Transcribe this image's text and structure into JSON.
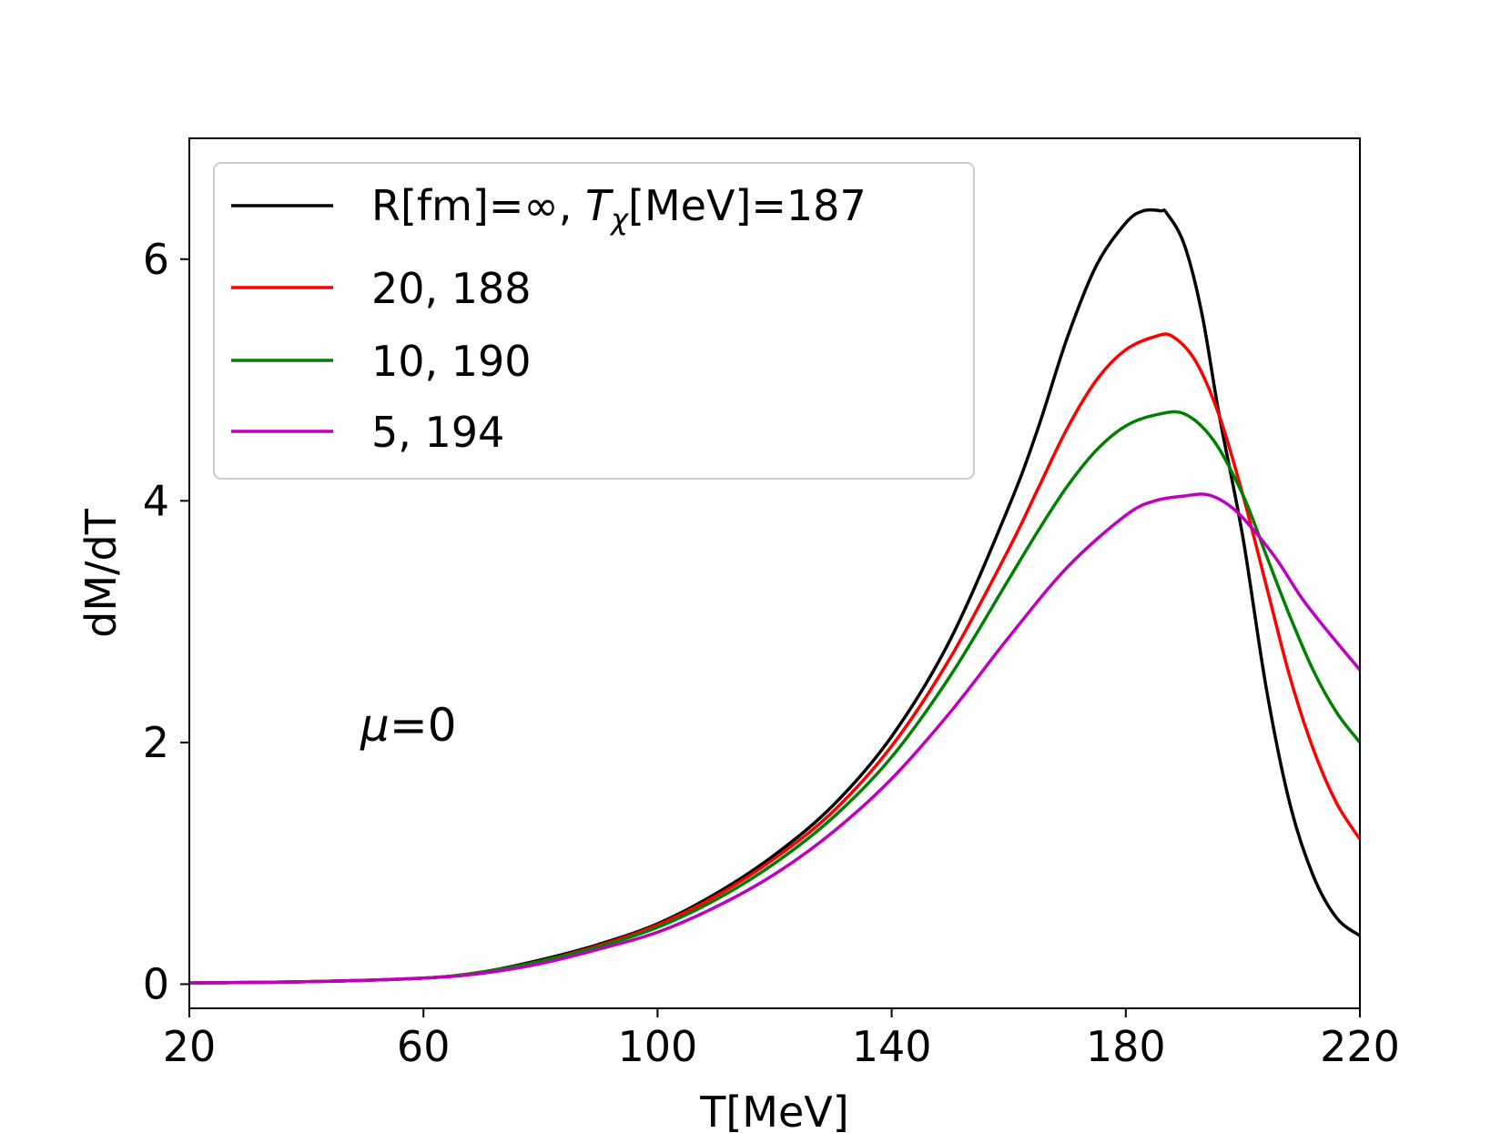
{
  "chart_data": {
    "type": "line",
    "title": "",
    "xlabel": "T[MeV]",
    "ylabel": "dM/dT",
    "xlim": [
      20,
      220
    ],
    "ylim": [
      -0.2,
      7.0
    ],
    "xticks": [
      20,
      60,
      100,
      140,
      180,
      220
    ],
    "yticks": [
      0,
      2,
      4,
      6
    ],
    "xtick_labels": [
      "20",
      "60",
      "100",
      "140",
      "180",
      "220"
    ],
    "ytick_labels": [
      "0",
      "2",
      "4",
      "6"
    ],
    "grid": false,
    "legend_position": "top-left",
    "annotation": {
      "symbol": "μ",
      "text": "=0",
      "x": 50,
      "y": 2.0
    },
    "series": [
      {
        "name": "R[fm]=∞, Tχ[MeV]=187",
        "legend_prefix": "R[fm]=∞, ",
        "legend_symbol": "T",
        "legend_subscript": "χ",
        "legend_suffix": "[MeV]=187",
        "color": "#000000",
        "x": [
          20,
          40,
          60,
          70,
          80,
          90,
          100,
          110,
          120,
          130,
          140,
          150,
          160,
          165,
          170,
          175,
          180,
          183,
          186,
          187,
          190,
          193,
          196,
          200,
          204,
          208,
          212,
          216,
          220
        ],
        "y": [
          0.01,
          0.02,
          0.05,
          0.1,
          0.2,
          0.33,
          0.5,
          0.75,
          1.07,
          1.48,
          2.05,
          2.85,
          3.95,
          4.6,
          5.35,
          5.95,
          6.3,
          6.4,
          6.4,
          6.38,
          6.12,
          5.55,
          4.7,
          3.7,
          2.45,
          1.5,
          0.9,
          0.55,
          0.4
        ]
      },
      {
        "name": "20, 188",
        "legend_text": "20, 188",
        "color": "#ff0000",
        "x": [
          20,
          40,
          60,
          70,
          80,
          90,
          100,
          110,
          120,
          130,
          140,
          150,
          160,
          165,
          170,
          175,
          180,
          185,
          188,
          192,
          196,
          200,
          204,
          208,
          212,
          216,
          220
        ],
        "y": [
          0.01,
          0.02,
          0.05,
          0.1,
          0.19,
          0.32,
          0.49,
          0.73,
          1.04,
          1.43,
          1.97,
          2.7,
          3.6,
          4.1,
          4.6,
          5.0,
          5.25,
          5.36,
          5.36,
          5.15,
          4.7,
          4.05,
          3.3,
          2.55,
          1.95,
          1.5,
          1.2
        ]
      },
      {
        "name": "10, 190",
        "legend_text": "10, 190",
        "color": "#008000",
        "x": [
          20,
          40,
          60,
          70,
          80,
          90,
          100,
          110,
          120,
          130,
          140,
          150,
          160,
          165,
          170,
          175,
          180,
          185,
          190,
          195,
          200,
          204,
          208,
          212,
          216,
          220
        ],
        "y": [
          0.01,
          0.02,
          0.05,
          0.1,
          0.19,
          0.31,
          0.47,
          0.7,
          1.0,
          1.38,
          1.88,
          2.55,
          3.35,
          3.75,
          4.12,
          4.42,
          4.62,
          4.71,
          4.72,
          4.5,
          4.05,
          3.55,
          3.05,
          2.6,
          2.25,
          2.0
        ]
      },
      {
        "name": "5, 194",
        "legend_text": "5, 194",
        "color": "#bf00bf",
        "x": [
          20,
          40,
          60,
          70,
          80,
          90,
          100,
          110,
          120,
          130,
          140,
          150,
          160,
          170,
          180,
          185,
          190,
          194,
          198,
          202,
          206,
          210,
          214,
          220
        ],
        "y": [
          0.01,
          0.02,
          0.05,
          0.09,
          0.17,
          0.29,
          0.43,
          0.64,
          0.91,
          1.26,
          1.7,
          2.25,
          2.87,
          3.45,
          3.88,
          4.0,
          4.04,
          4.05,
          3.95,
          3.75,
          3.5,
          3.2,
          2.95,
          2.6
        ]
      }
    ]
  }
}
